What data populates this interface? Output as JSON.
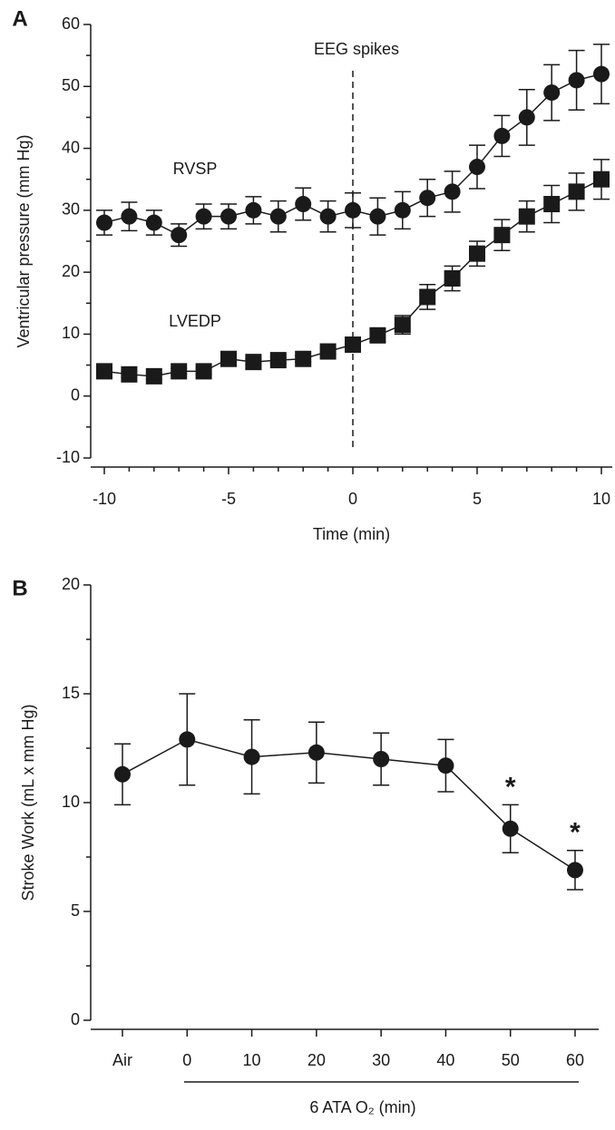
{
  "chart_data": [
    {
      "type": "line",
      "panel": "A",
      "xlabel": "Time (min)",
      "ylabel": "Ventricular pressure (mm Hg)",
      "x": [
        -10,
        -9,
        -8,
        -7,
        -6,
        -5,
        -4,
        -3,
        -2,
        -1,
        0,
        1,
        2,
        3,
        4,
        5,
        6,
        7,
        8,
        9,
        10
      ],
      "xlim": [
        -10,
        10
      ],
      "xticks": [
        -10,
        -5,
        0,
        5,
        10
      ],
      "ylim": [
        -10,
        60
      ],
      "yticks": [
        -10,
        0,
        10,
        20,
        30,
        40,
        50,
        60
      ],
      "annotations": [
        "EEG spikes",
        "RVSP",
        "LVEDP"
      ],
      "series": [
        {
          "name": "RVSP",
          "marker": "circle",
          "color": "#1a1a1a",
          "values": [
            28,
            29,
            28,
            26,
            29,
            29,
            30,
            29,
            31,
            29,
            30,
            29,
            30,
            32,
            33,
            37,
            42,
            45,
            49,
            51,
            52
          ],
          "errors": [
            2,
            2.3,
            2,
            1.8,
            2,
            2,
            2.2,
            2.5,
            2.6,
            2.5,
            2.8,
            3,
            3,
            3,
            3.3,
            3.5,
            3.3,
            4.5,
            4.5,
            4.8,
            4.8
          ]
        },
        {
          "name": "LVEDP",
          "marker": "square",
          "color": "#1a1a1a",
          "values": [
            4,
            3.5,
            3.2,
            4,
            4,
            6,
            5.5,
            5.8,
            6,
            7.2,
            8.3,
            9.8,
            11.5,
            16,
            19,
            23,
            26,
            29,
            31,
            33,
            35
          ],
          "errors": [
            0.5,
            0.5,
            0.5,
            0.5,
            0.5,
            0.5,
            0.5,
            0.5,
            0.5,
            0.5,
            1,
            1,
            1.5,
            2,
            2,
            2,
            2.5,
            2.5,
            3,
            3,
            3.2
          ]
        }
      ]
    },
    {
      "type": "line",
      "panel": "B",
      "xlabel": "6 ATA O₂ (min)",
      "ylabel": "Stroke Work (mL x mm Hg)",
      "categories": [
        "Air",
        "0",
        "10",
        "20",
        "30",
        "40",
        "50",
        "60"
      ],
      "ylim": [
        0,
        20
      ],
      "yticks": [
        0,
        5,
        10,
        15,
        20
      ],
      "annotations": [
        {
          "text": "*",
          "category": "50"
        },
        {
          "text": "*",
          "category": "60"
        }
      ],
      "series": [
        {
          "marker": "circle",
          "color": "#1a1a1a",
          "values": [
            11.3,
            12.9,
            12.1,
            12.3,
            12.0,
            11.7,
            8.8,
            6.9
          ],
          "errors": [
            1.4,
            2.1,
            1.7,
            1.4,
            1.2,
            1.2,
            1.1,
            0.9
          ]
        }
      ]
    }
  ]
}
